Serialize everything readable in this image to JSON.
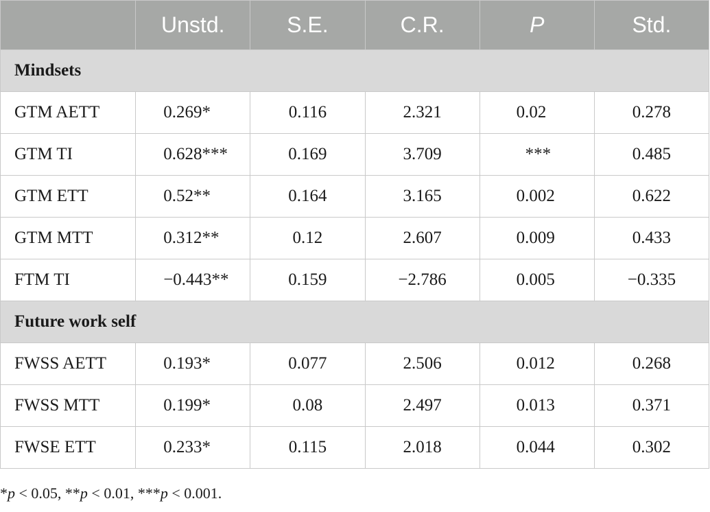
{
  "headers": [
    "",
    "Unstd.",
    "S.E.",
    "C.R.",
    "P",
    "Std."
  ],
  "sections": [
    {
      "title": "Mindsets",
      "rows": [
        {
          "label": "GTM AETT",
          "unstd": "0.269*",
          "se": "0.116",
          "cr": "2.321",
          "p": "0.02",
          "std": "0.278"
        },
        {
          "label": "GTM TI",
          "unstd": "0.628***",
          "se": "0.169",
          "cr": "3.709",
          "p": "***",
          "std": "0.485"
        },
        {
          "label": "GTM ETT",
          "unstd": "0.52**",
          "se": "0.164",
          "cr": "3.165",
          "p": "0.002",
          "std": "0.622"
        },
        {
          "label": "GTM MTT",
          "unstd": "0.312**",
          "se": "0.12",
          "cr": "2.607",
          "p": "0.009",
          "std": "0.433"
        },
        {
          "label": "FTM TI",
          "unstd": "−0.443**",
          "se": "0.159",
          "cr": "−2.786",
          "p": "0.005",
          "std": "−0.335"
        }
      ]
    },
    {
      "title": "Future work self",
      "rows": [
        {
          "label": "FWSS AETT",
          "unstd": "0.193*",
          "se": "0.077",
          "cr": "2.506",
          "p": "0.012",
          "std": "0.268"
        },
        {
          "label": "FWSS MTT",
          "unstd": "0.199*",
          "se": "0.08",
          "cr": "2.497",
          "p": "0.013",
          "std": "0.371"
        },
        {
          "label": "FWSE ETT",
          "unstd": "0.233*",
          "se": "0.115",
          "cr": "2.018",
          "p": "0.044",
          "std": "0.302"
        }
      ]
    }
  ],
  "footnote": {
    "a_stars": "*",
    "a_p": "p",
    "a_rest": " < 0.05, ",
    "b_stars": "**",
    "b_p": "p",
    "b_rest": " < 0.01, ",
    "c_stars": "***",
    "c_p": "p",
    "c_rest": " < 0.001."
  }
}
